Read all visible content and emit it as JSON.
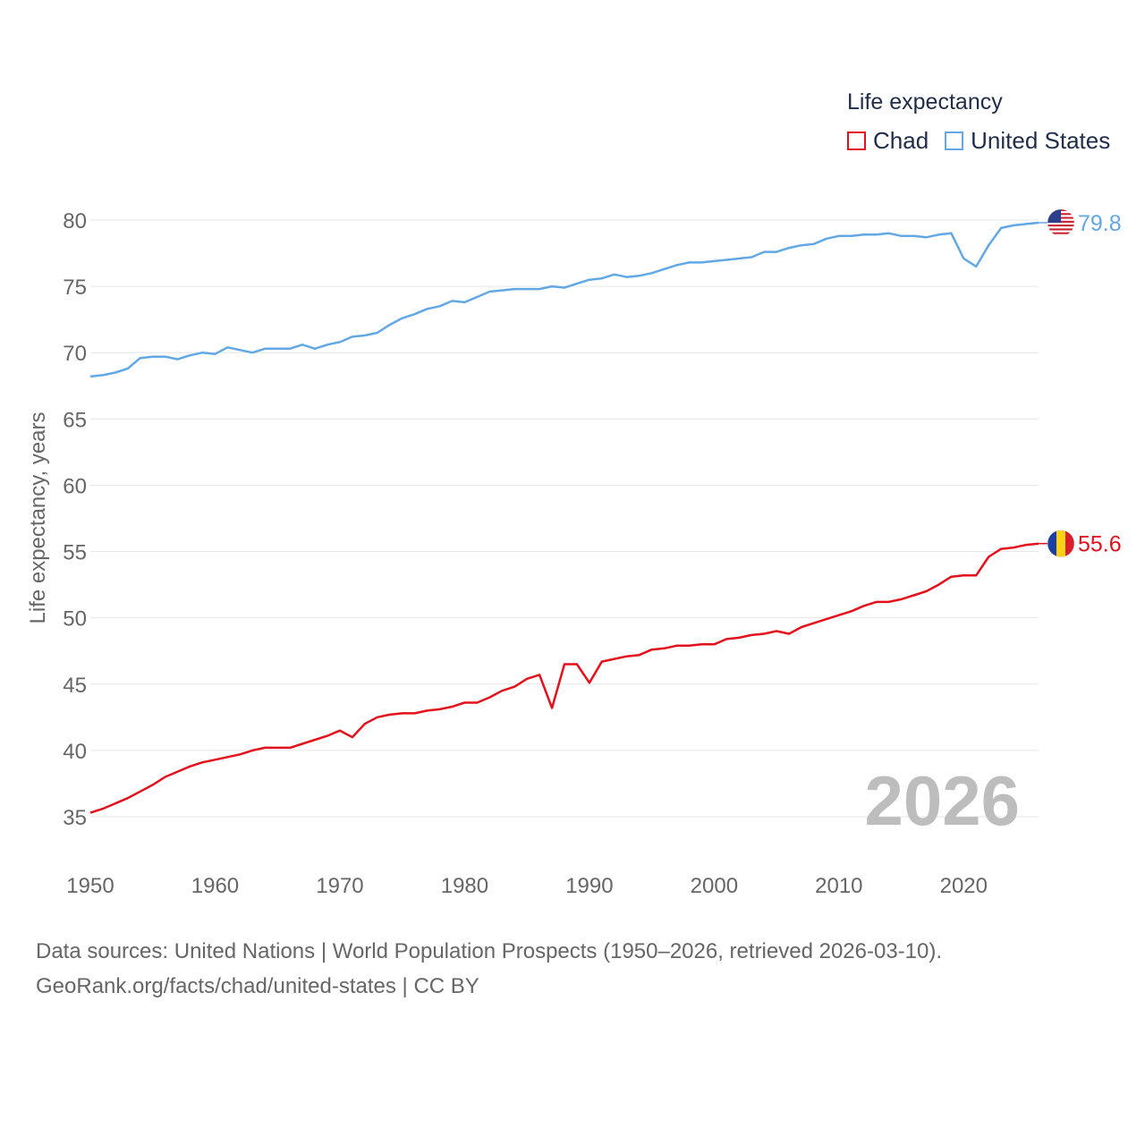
{
  "legend": {
    "title": "Life expectancy",
    "items": [
      {
        "label": "Chad",
        "color": "#e3111b"
      },
      {
        "label": "United States",
        "color": "#62a8e5"
      }
    ]
  },
  "current_year_label": "2026",
  "source": {
    "line1": "Data sources: United Nations | World Population Prospects (1950–2026, retrieved 2026-03-10).",
    "line2": "GeoRank.org/facts/chad/united-states | CC BY"
  },
  "chart_data": {
    "type": "line",
    "title": "Life expectancy",
    "xlabel": "",
    "ylabel": "Life expectancy, years",
    "xlim": [
      1950,
      2026
    ],
    "ylim": [
      32,
      82
    ],
    "xticks": [
      1950,
      1960,
      1970,
      1980,
      1990,
      2000,
      2010,
      2020
    ],
    "yticks": [
      35,
      40,
      45,
      50,
      55,
      60,
      65,
      70,
      75,
      80
    ],
    "grid": true,
    "x": [
      1950,
      1951,
      1952,
      1953,
      1954,
      1955,
      1956,
      1957,
      1958,
      1959,
      1960,
      1961,
      1962,
      1963,
      1964,
      1965,
      1966,
      1967,
      1968,
      1969,
      1970,
      1971,
      1972,
      1973,
      1974,
      1975,
      1976,
      1977,
      1978,
      1979,
      1980,
      1981,
      1982,
      1983,
      1984,
      1985,
      1986,
      1987,
      1988,
      1989,
      1990,
      1991,
      1992,
      1993,
      1994,
      1995,
      1996,
      1997,
      1998,
      1999,
      2000,
      2001,
      2002,
      2003,
      2004,
      2005,
      2006,
      2007,
      2008,
      2009,
      2010,
      2011,
      2012,
      2013,
      2014,
      2015,
      2016,
      2017,
      2018,
      2019,
      2020,
      2021,
      2022,
      2023,
      2024,
      2025,
      2026
    ],
    "series": [
      {
        "name": "Chad",
        "color": "#e3111b",
        "end_label": "55.6",
        "values": [
          35.3,
          35.6,
          36.0,
          36.4,
          36.9,
          37.4,
          38.0,
          38.4,
          38.8,
          39.1,
          39.3,
          39.5,
          39.7,
          40.0,
          40.2,
          40.2,
          40.2,
          40.5,
          40.8,
          41.1,
          41.5,
          41.0,
          42.0,
          42.5,
          42.7,
          42.8,
          42.8,
          43.0,
          43.1,
          43.3,
          43.6,
          43.6,
          44.0,
          44.5,
          44.8,
          45.4,
          45.7,
          43.2,
          46.5,
          46.5,
          45.1,
          46.7,
          46.9,
          47.1,
          47.2,
          47.6,
          47.7,
          47.9,
          47.9,
          48.0,
          48.0,
          48.4,
          48.5,
          48.7,
          48.8,
          49.0,
          48.8,
          49.3,
          49.6,
          49.9,
          50.2,
          50.5,
          50.9,
          51.2,
          51.2,
          51.4,
          51.7,
          52.0,
          52.5,
          53.1,
          53.2,
          53.2,
          54.6,
          55.2,
          55.3,
          55.5,
          55.6
        ]
      },
      {
        "name": "United States",
        "color": "#62a8e5",
        "end_label": "79.8",
        "values": [
          68.2,
          68.3,
          68.5,
          68.8,
          69.6,
          69.7,
          69.7,
          69.5,
          69.8,
          70.0,
          69.9,
          70.4,
          70.2,
          70.0,
          70.3,
          70.3,
          70.3,
          70.6,
          70.3,
          70.6,
          70.8,
          71.2,
          71.3,
          71.5,
          72.1,
          72.6,
          72.9,
          73.3,
          73.5,
          73.9,
          73.8,
          74.2,
          74.6,
          74.7,
          74.8,
          74.8,
          74.8,
          75.0,
          74.9,
          75.2,
          75.5,
          75.6,
          75.9,
          75.7,
          75.8,
          76.0,
          76.3,
          76.6,
          76.8,
          76.8,
          76.9,
          77.0,
          77.1,
          77.2,
          77.6,
          77.6,
          77.9,
          78.1,
          78.2,
          78.6,
          78.8,
          78.8,
          78.9,
          78.9,
          79.0,
          78.8,
          78.8,
          78.7,
          78.9,
          79.0,
          77.1,
          76.5,
          78.1,
          79.4,
          79.6,
          79.7,
          79.8
        ]
      }
    ]
  }
}
